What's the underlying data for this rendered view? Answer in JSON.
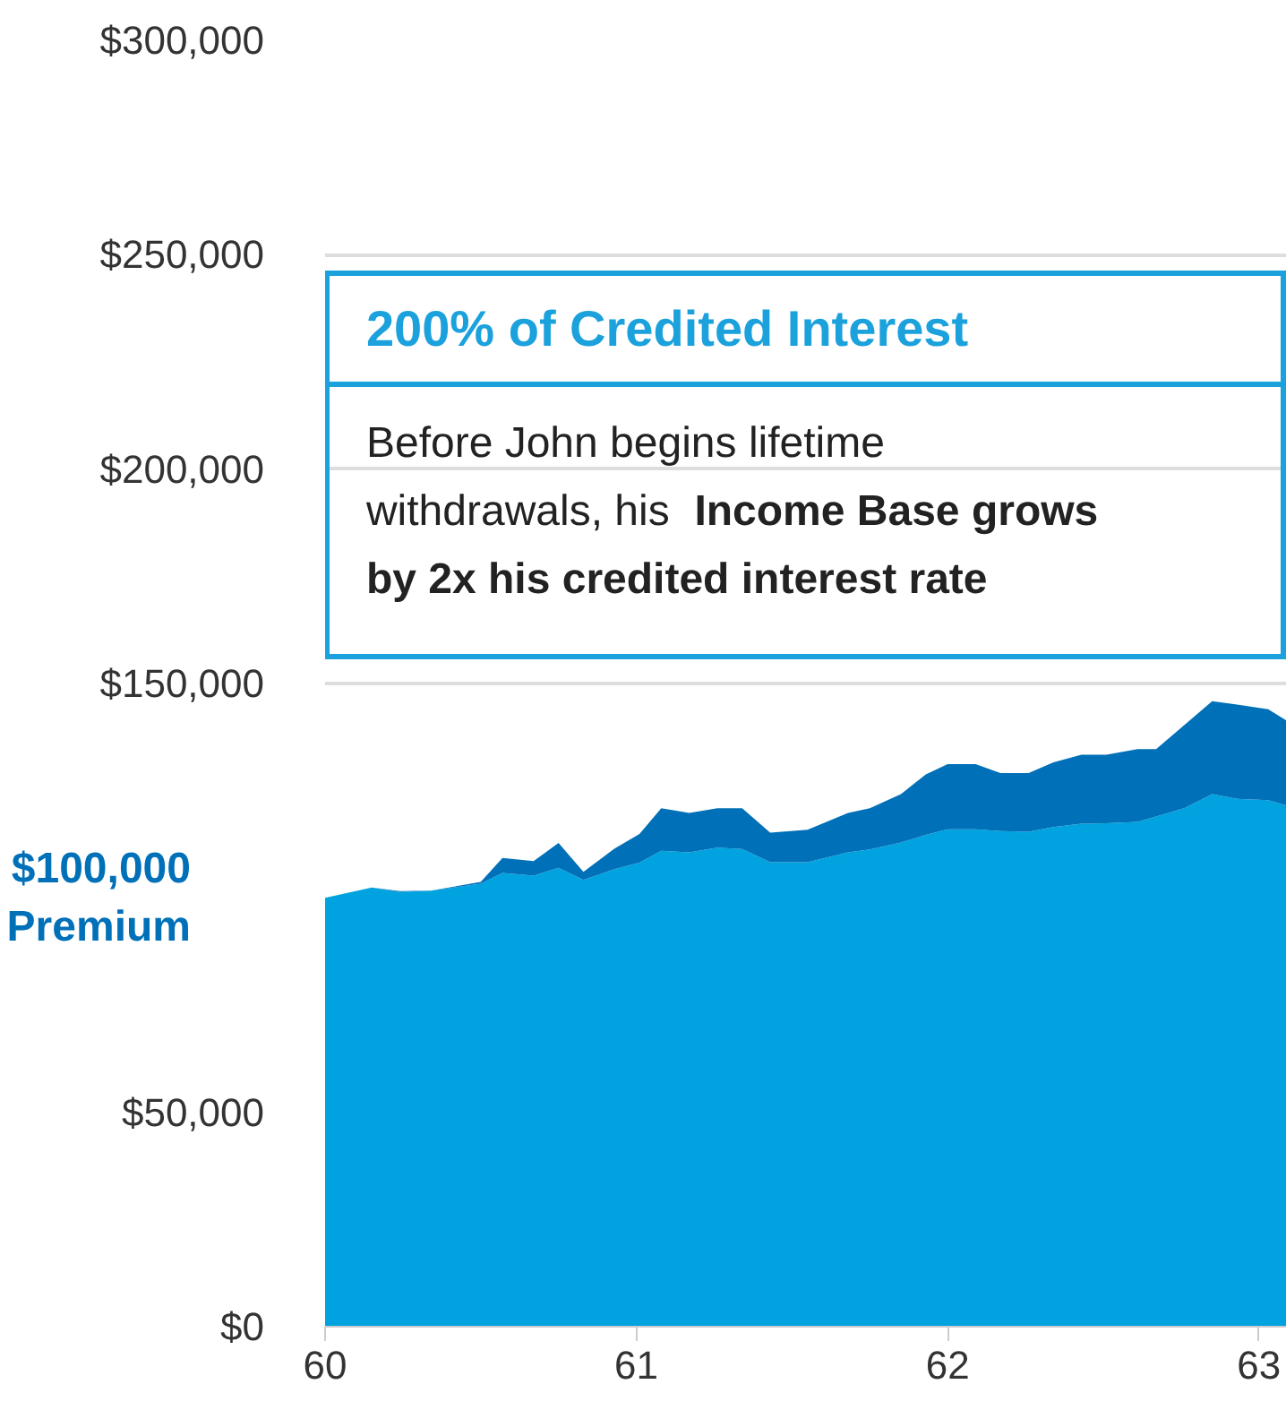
{
  "chart_data": {
    "type": "area",
    "stacked": true,
    "xlim": [
      60,
      63.09
    ],
    "xticks": [
      60,
      61,
      62,
      63
    ],
    "ylim": [
      0,
      300000
    ],
    "yticks": [
      {
        "value": 0,
        "label": "$0"
      },
      {
        "value": 50000,
        "label": "$50,000"
      },
      {
        "value": 150000,
        "label": "$150,000"
      },
      {
        "value": 200000,
        "label": "$200,000"
      },
      {
        "value": 250000,
        "label": "$250,000"
      },
      {
        "value": 300000,
        "label": "$300,000"
      }
    ],
    "grid": "y",
    "x": [
      60.0,
      60.15,
      60.24,
      60.34,
      60.5,
      60.57,
      60.67,
      60.75,
      60.83,
      60.93,
      61.01,
      61.08,
      61.17,
      61.26,
      61.34,
      61.43,
      61.55,
      61.68,
      61.75,
      61.85,
      61.93,
      62.0,
      62.09,
      62.17,
      62.26,
      62.34,
      62.43,
      62.51,
      62.61,
      62.67,
      62.76,
      62.85,
      62.93,
      63.03,
      63.09
    ],
    "series": [
      {
        "color": "#00a3e0",
        "values": [
          100000,
          102400,
          101400,
          101700,
          103300,
          105800,
          105200,
          107000,
          104200,
          106700,
          108200,
          111000,
          110600,
          111700,
          111400,
          108300,
          108300,
          110600,
          111300,
          112900,
          114700,
          116000,
          116000,
          115600,
          115400,
          116500,
          117300,
          117400,
          117700,
          119000,
          120900,
          124200,
          123100,
          122800,
          121500
        ]
      },
      {
        "color": "#0070b8",
        "values": [
          0,
          0,
          200,
          0,
          400,
          3500,
          3400,
          5800,
          1900,
          4800,
          6700,
          9900,
          9200,
          9200,
          9500,
          6900,
          7600,
          9200,
          9600,
          11300,
          14100,
          15200,
          15200,
          13500,
          13700,
          15100,
          16100,
          16000,
          17000,
          15700,
          19400,
          21700,
          22000,
          21200,
          19800
        ]
      }
    ],
    "annotations": [
      "$100,000 Premium",
      "200% of Credited Interest",
      "Before John begins lifetime withdrawals, his",
      "Income Base grows by 2x his credited interest rate"
    ]
  }
}
